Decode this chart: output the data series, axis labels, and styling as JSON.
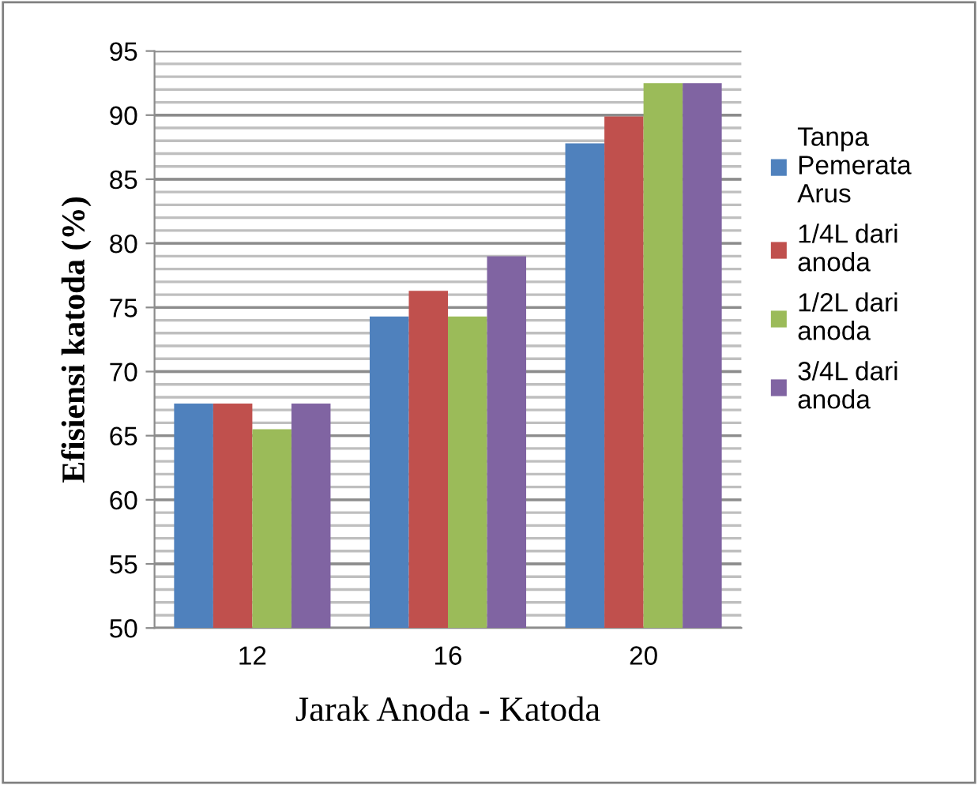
{
  "chart_data": {
    "type": "bar",
    "xlabel": "Jarak Anoda - Katoda",
    "ylabel": "Efisiensi katoda (%)",
    "categories": [
      "12",
      "16",
      "20"
    ],
    "series": [
      {
        "name": "Tanpa Pemerata Arus",
        "color": "#4f81bd",
        "values": [
          67.5,
          74.3,
          87.8
        ]
      },
      {
        "name": "1/4L dari anoda",
        "color": "#c0504d",
        "values": [
          67.5,
          76.3,
          89.9
        ]
      },
      {
        "name": "1/2L dari anoda",
        "color": "#9bbb59",
        "values": [
          65.5,
          74.3,
          92.5
        ]
      },
      {
        "name": "3/4L dari anoda",
        "color": "#8064a2",
        "values": [
          67.5,
          79.0,
          92.5
        ]
      }
    ],
    "ylim": [
      50,
      95
    ],
    "yticks": [
      50,
      55,
      60,
      65,
      70,
      75,
      80,
      85,
      90,
      95
    ],
    "grid": "y",
    "legend": "right"
  }
}
